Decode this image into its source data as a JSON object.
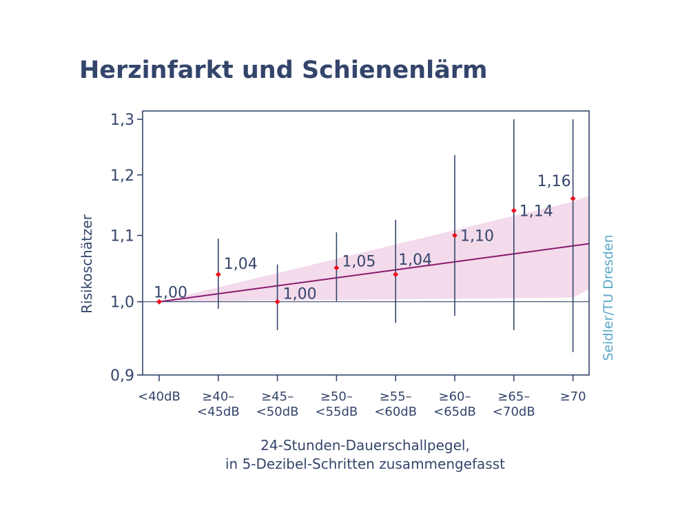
{
  "title": "Herzinfarkt und Schienenlärm",
  "credit": "Seidler/TU Dresden",
  "colors": {
    "text": "#34456b",
    "axis": "#34456b",
    "marker": "#e8101c",
    "trend": "#8a1a6e",
    "band": "#f3dbeb",
    "credit": "#5aa7c9"
  },
  "chart_data": {
    "type": "scatter",
    "title": "Herzinfarkt und Schienenlärm",
    "ylabel": "Risikoschätzer",
    "xlabel": [
      "24-Stunden-Dauerschallpegel,",
      "in 5-Dezibel-Schritten zusammengefasst"
    ],
    "y_scale": "log",
    "ylim": [
      0.9,
      1.3
    ],
    "y_ticks": [
      {
        "value": 0.9,
        "label": "0,9"
      },
      {
        "value": 1.0,
        "label": "1,0"
      },
      {
        "value": 1.1,
        "label": "1,1"
      },
      {
        "value": 1.2,
        "label": "1,2"
      },
      {
        "value": 1.3,
        "label": "1,3"
      }
    ],
    "reference_line": 1.0,
    "categories": [
      [
        "<40dB"
      ],
      [
        "≥40–",
        "<45dB"
      ],
      [
        "≥45–",
        "<50dB"
      ],
      [
        "≥50–",
        "<55dB"
      ],
      [
        "≥55–",
        "<60dB"
      ],
      [
        "≥60–",
        "<65dB"
      ],
      [
        "≥65–",
        "<70dB"
      ],
      [
        "≥70"
      ]
    ],
    "points": [
      {
        "value": 1.0,
        "label": "1,00",
        "ci": null
      },
      {
        "value": 1.04,
        "label": "1,04",
        "ci": [
          0.99,
          1.095
        ]
      },
      {
        "value": 1.0,
        "label": "1,00",
        "ci": [
          0.96,
          1.055
        ]
      },
      {
        "value": 1.05,
        "label": "1,05",
        "ci": [
          1.0,
          1.105
        ]
      },
      {
        "value": 1.04,
        "label": "1,04",
        "ci": [
          0.97,
          1.125
        ]
      },
      {
        "value": 1.1,
        "label": "1,10",
        "ci": [
          0.98,
          1.235
        ]
      },
      {
        "value": 1.14,
        "label": "1,14",
        "ci": [
          0.96,
          1.3
        ]
      },
      {
        "value": 1.16,
        "label": "1,16",
        "ci": [
          0.93,
          1.3
        ]
      }
    ],
    "trend": {
      "at_first": 1.0,
      "at_last": 1.075,
      "end_right": 1.087
    },
    "band": {
      "upper_last": 1.155,
      "lower_last": 1.006,
      "upper_right": 1.165,
      "lower_right": 1.018
    }
  }
}
